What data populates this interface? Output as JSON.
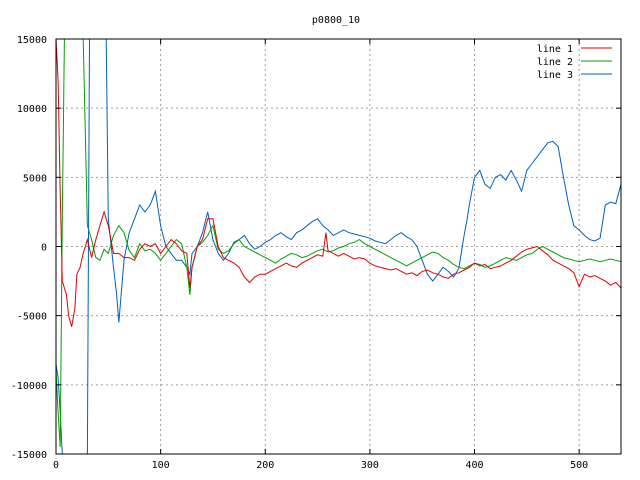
{
  "chart_data": {
    "type": "line",
    "title": "p0800_10",
    "xlabel": "",
    "ylabel": "",
    "xlim": [
      0,
      540
    ],
    "ylim": [
      -15000,
      15000
    ],
    "grid": true,
    "legend_position": "top-right",
    "x_ticks": [
      0,
      100,
      200,
      300,
      400,
      500
    ],
    "x_tick_labels": [
      "0",
      "100",
      "200",
      "300",
      "400",
      "500"
    ],
    "y_ticks": [
      -15000,
      -10000,
      -5000,
      0,
      5000,
      10000,
      15000
    ],
    "y_tick_labels": [
      "-15000",
      "-10000",
      "-5000",
      "0",
      "5000",
      "10000",
      "15000"
    ],
    "series": [
      {
        "name": "line 1",
        "color": "#e00000",
        "x": [
          0,
          2,
          4,
          6,
          8,
          10,
          12,
          15,
          18,
          20,
          23,
          26,
          30,
          34,
          38,
          42,
          46,
          48,
          50,
          55,
          60,
          65,
          70,
          75,
          80,
          85,
          90,
          95,
          100,
          105,
          110,
          115,
          120,
          125,
          128,
          130,
          135,
          140,
          145,
          150,
          155,
          160,
          165,
          170,
          175,
          180,
          185,
          190,
          195,
          200,
          205,
          210,
          215,
          220,
          225,
          230,
          235,
          240,
          245,
          250,
          255,
          258,
          260,
          265,
          270,
          275,
          280,
          285,
          290,
          295,
          300,
          305,
          310,
          315,
          320,
          325,
          330,
          335,
          340,
          345,
          350,
          355,
          360,
          365,
          370,
          375,
          380,
          385,
          390,
          395,
          400,
          405,
          410,
          415,
          420,
          425,
          430,
          435,
          440,
          445,
          450,
          455,
          460,
          465,
          470,
          475,
          480,
          485,
          490,
          495,
          500,
          505,
          510,
          515,
          520,
          525,
          530,
          535,
          540
        ],
        "values": [
          15000,
          12000,
          4000,
          -2500,
          -3000,
          -3500,
          -5000,
          -5800,
          -4500,
          -2000,
          -1500,
          -500,
          500,
          -800,
          500,
          1500,
          2500,
          2000,
          1500,
          -500,
          -500,
          -800,
          -800,
          -1000,
          -200,
          200,
          0,
          200,
          -500,
          0,
          500,
          200,
          -300,
          -500,
          -3000,
          -1500,
          0,
          500,
          2000,
          2000,
          0,
          -800,
          -1000,
          -1200,
          -1500,
          -2200,
          -2600,
          -2200,
          -2000,
          -2000,
          -1800,
          -1600,
          -1400,
          -1200,
          -1400,
          -1500,
          -1200,
          -1000,
          -800,
          -600,
          -700,
          1000,
          -300,
          -500,
          -700,
          -500,
          -700,
          -900,
          -800,
          -900,
          -1200,
          -1400,
          -1500,
          -1600,
          -1700,
          -1600,
          -1800,
          -2000,
          -1900,
          -2100,
          -1800,
          -1700,
          -1900,
          -2000,
          -2200,
          -2300,
          -2000,
          -1900,
          -1700,
          -1500,
          -1200,
          -1400,
          -1300,
          -1600,
          -1500,
          -1400,
          -1200,
          -1000,
          -700,
          -400,
          -200,
          -100,
          0,
          -300,
          -600,
          -1000,
          -1200,
          -1400,
          -1600,
          -1900,
          -2900,
          -2000,
          -2200,
          -2100,
          -2300,
          -2500,
          -2800,
          -2600,
          -3000
        ]
      },
      {
        "name": "line 2",
        "color": "#00a000",
        "x": [
          0,
          2,
          4,
          6,
          8,
          10,
          12,
          15,
          18,
          22,
          26,
          30,
          34,
          38,
          42,
          46,
          50,
          55,
          60,
          65,
          70,
          75,
          80,
          85,
          90,
          95,
          100,
          105,
          110,
          115,
          120,
          125,
          128,
          130,
          135,
          140,
          145,
          150,
          155,
          160,
          165,
          170,
          175,
          180,
          185,
          190,
          195,
          200,
          205,
          210,
          215,
          220,
          225,
          230,
          235,
          240,
          245,
          250,
          255,
          260,
          265,
          270,
          275,
          280,
          285,
          290,
          295,
          300,
          305,
          310,
          315,
          320,
          325,
          330,
          335,
          340,
          345,
          350,
          355,
          360,
          365,
          370,
          375,
          380,
          385,
          390,
          395,
          400,
          405,
          410,
          415,
          420,
          425,
          430,
          435,
          440,
          445,
          450,
          455,
          460,
          465,
          470,
          475,
          480,
          485,
          490,
          495,
          500,
          505,
          510,
          515,
          520,
          525,
          530,
          535,
          540
        ],
        "values": [
          -9000,
          -12000,
          -14500,
          2000,
          15000,
          15000,
          15000,
          15000,
          15000,
          15000,
          15000,
          1500,
          500,
          -800,
          -1000,
          -200,
          -500,
          800,
          1500,
          1000,
          -300,
          -800,
          200,
          -300,
          -200,
          -500,
          -1000,
          -500,
          0,
          500,
          200,
          -1500,
          -3500,
          -1500,
          0,
          300,
          800,
          1500,
          -200,
          -500,
          -300,
          200,
          500,
          0,
          -200,
          -400,
          -600,
          -800,
          -1000,
          -1200,
          -900,
          -700,
          -500,
          -600,
          -800,
          -700,
          -500,
          -300,
          -200,
          -400,
          -300,
          -100,
          0,
          200,
          300,
          500,
          200,
          0,
          -200,
          -400,
          -600,
          -800,
          -1000,
          -1200,
          -1400,
          -1200,
          -1000,
          -800,
          -600,
          -400,
          -500,
          -800,
          -1000,
          -1300,
          -1500,
          -1600,
          -1400,
          -1200,
          -1300,
          -1500,
          -1400,
          -1200,
          -1000,
          -800,
          -900,
          -1000,
          -800,
          -600,
          -500,
          -200,
          0,
          -200,
          -400,
          -600,
          -800,
          -900,
          -1000,
          -1100,
          -1000,
          -900,
          -1000,
          -1100,
          -1000,
          -900,
          -1000,
          -1100
        ]
      },
      {
        "name": "line 3",
        "color": "#0060c0",
        "x": [
          0,
          2,
          4,
          6,
          8,
          10,
          12,
          16,
          20,
          24,
          26,
          28,
          30,
          32,
          36,
          40,
          44,
          48,
          50,
          55,
          58,
          60,
          65,
          70,
          75,
          80,
          85,
          90,
          95,
          100,
          105,
          110,
          115,
          120,
          125,
          128,
          130,
          135,
          140,
          145,
          150,
          155,
          160,
          165,
          170,
          175,
          180,
          185,
          190,
          195,
          200,
          205,
          210,
          215,
          220,
          225,
          230,
          235,
          240,
          245,
          250,
          255,
          260,
          265,
          270,
          275,
          280,
          285,
          290,
          295,
          300,
          305,
          310,
          315,
          320,
          325,
          330,
          335,
          340,
          345,
          350,
          355,
          360,
          365,
          370,
          375,
          380,
          385,
          390,
          393,
          395,
          400,
          405,
          410,
          415,
          420,
          425,
          430,
          435,
          440,
          445,
          450,
          455,
          460,
          465,
          470,
          475,
          480,
          485,
          490,
          495,
          500,
          505,
          510,
          515,
          520,
          525,
          530,
          535,
          540
        ],
        "values": [
          -8500,
          -9500,
          -12000,
          -15000,
          -15000,
          -15000,
          -15000,
          -15000,
          -15000,
          -15000,
          -15000,
          -15000,
          -15000,
          15000,
          15000,
          15000,
          15000,
          15000,
          2000,
          -1500,
          -3500,
          -5500,
          -1000,
          1000,
          2000,
          3000,
          2500,
          3000,
          4000,
          1500,
          0,
          -500,
          -1000,
          -1000,
          -1500,
          -2000,
          -500,
          0,
          1000,
          2500,
          500,
          -500,
          -1000,
          -500,
          300,
          500,
          800,
          200,
          -200,
          0,
          300,
          500,
          800,
          1000,
          700,
          500,
          1000,
          1200,
          1500,
          1800,
          2000,
          1500,
          1200,
          800,
          1000,
          1200,
          1000,
          900,
          800,
          700,
          600,
          400,
          300,
          200,
          500,
          800,
          1000,
          700,
          500,
          0,
          -1000,
          -2000,
          -2500,
          -2000,
          -1500,
          -1800,
          -2200,
          -1600,
          800,
          2000,
          3000,
          5000,
          5500,
          4500,
          4200,
          5000,
          5200,
          4800,
          5500,
          4800,
          4000,
          5500,
          6000,
          6500,
          7000,
          7500,
          7600,
          7200,
          5000,
          3000,
          1500,
          1200,
          800,
          500,
          400,
          600,
          3000,
          3200,
          3100,
          4500
        ]
      }
    ]
  }
}
